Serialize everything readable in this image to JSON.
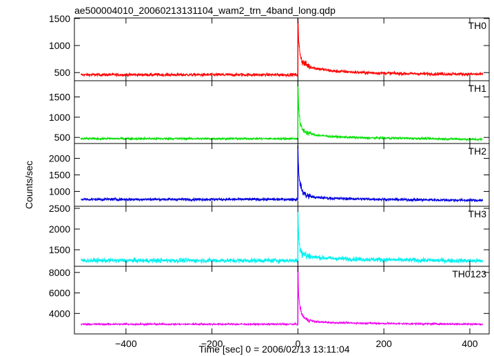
{
  "chart_data": {
    "type": "line",
    "title": "ae500004010_20060213131104_wam2_trn_4band_long.qdp",
    "xlabel": "Time [sec] 0 = 2006/02/13 13:11:04",
    "ylabel": "Counts/sec",
    "xlim": [
      -520,
      445
    ],
    "x_ticks": [
      -400,
      -200,
      0,
      200,
      400
    ],
    "x_tick_labels": [
      "−400",
      "−200",
      "0",
      "200",
      "400"
    ],
    "x_data_range": [
      -505,
      430
    ],
    "peak_time": 0,
    "panels": [
      {
        "name": "TH0",
        "color": "#ff0000",
        "ylim": [
          350,
          1510
        ],
        "y_ticks": [
          500,
          1000,
          1500
        ],
        "y_tick_labels": [
          "500",
          "1000",
          "1500"
        ],
        "baseline": 460,
        "noise": 15,
        "peak": 1510,
        "decay_points": [
          [
            0,
            1510
          ],
          [
            2,
            1050
          ],
          [
            5,
            850
          ],
          [
            10,
            700
          ],
          [
            20,
            640
          ],
          [
            40,
            580
          ],
          [
            80,
            530
          ],
          [
            150,
            500
          ],
          [
            250,
            480
          ],
          [
            430,
            470
          ]
        ]
      },
      {
        "name": "TH1",
        "color": "#00e000",
        "ylim": [
          350,
          1900
        ],
        "y_ticks": [
          500,
          1000,
          1500
        ],
        "y_tick_labels": [
          "500",
          "1000",
          "1500"
        ],
        "baseline": 470,
        "noise": 15,
        "peak": 1900,
        "decay_points": [
          [
            0,
            1900
          ],
          [
            2,
            1200
          ],
          [
            5,
            850
          ],
          [
            10,
            700
          ],
          [
            20,
            620
          ],
          [
            40,
            560
          ],
          [
            80,
            520
          ],
          [
            150,
            490
          ],
          [
            250,
            480
          ],
          [
            430,
            450
          ]
        ]
      },
      {
        "name": "TH2",
        "color": "#0000e0",
        "ylim": [
          550,
          2450
        ],
        "y_ticks": [
          1000,
          1500,
          2000
        ],
        "y_tick_labels": [
          "1000",
          "1500",
          "2000"
        ],
        "baseline": 760,
        "noise": 22,
        "peak": 2400,
        "decay_points": [
          [
            0,
            2400
          ],
          [
            2,
            1500
          ],
          [
            5,
            1250
          ],
          [
            10,
            1000
          ],
          [
            20,
            880
          ],
          [
            40,
            820
          ],
          [
            80,
            790
          ],
          [
            150,
            770
          ],
          [
            250,
            750
          ],
          [
            430,
            730
          ]
        ]
      },
      {
        "name": "TH3",
        "color": "#00f0f0",
        "ylim": [
          1100,
          2550
        ],
        "y_ticks": [
          1500,
          2000,
          2500
        ],
        "y_tick_labels": [
          "1500",
          "2000",
          "2500"
        ],
        "baseline": 1240,
        "noise": 28,
        "peak": 2450,
        "decay_points": [
          [
            0,
            2450
          ],
          [
            2,
            1750
          ],
          [
            5,
            1550
          ],
          [
            10,
            1420
          ],
          [
            20,
            1360
          ],
          [
            40,
            1320
          ],
          [
            80,
            1290
          ],
          [
            150,
            1270
          ],
          [
            250,
            1250
          ],
          [
            430,
            1230
          ]
        ]
      },
      {
        "name": "TH0123",
        "color": "#ee00ee",
        "ylim": [
          2000,
          8600
        ],
        "y_ticks": [
          4000,
          6000,
          8000
        ],
        "y_tick_labels": [
          "4000",
          "6000",
          "8000"
        ],
        "baseline": 2950,
        "noise": 45,
        "peak": 8600,
        "decay_points": [
          [
            0,
            8600
          ],
          [
            2,
            5500
          ],
          [
            5,
            4600
          ],
          [
            10,
            3800
          ],
          [
            20,
            3400
          ],
          [
            40,
            3200
          ],
          [
            80,
            3100
          ],
          [
            150,
            3050
          ],
          [
            250,
            3000
          ],
          [
            430,
            2950
          ]
        ]
      }
    ],
    "grid": false,
    "legend": "none"
  }
}
